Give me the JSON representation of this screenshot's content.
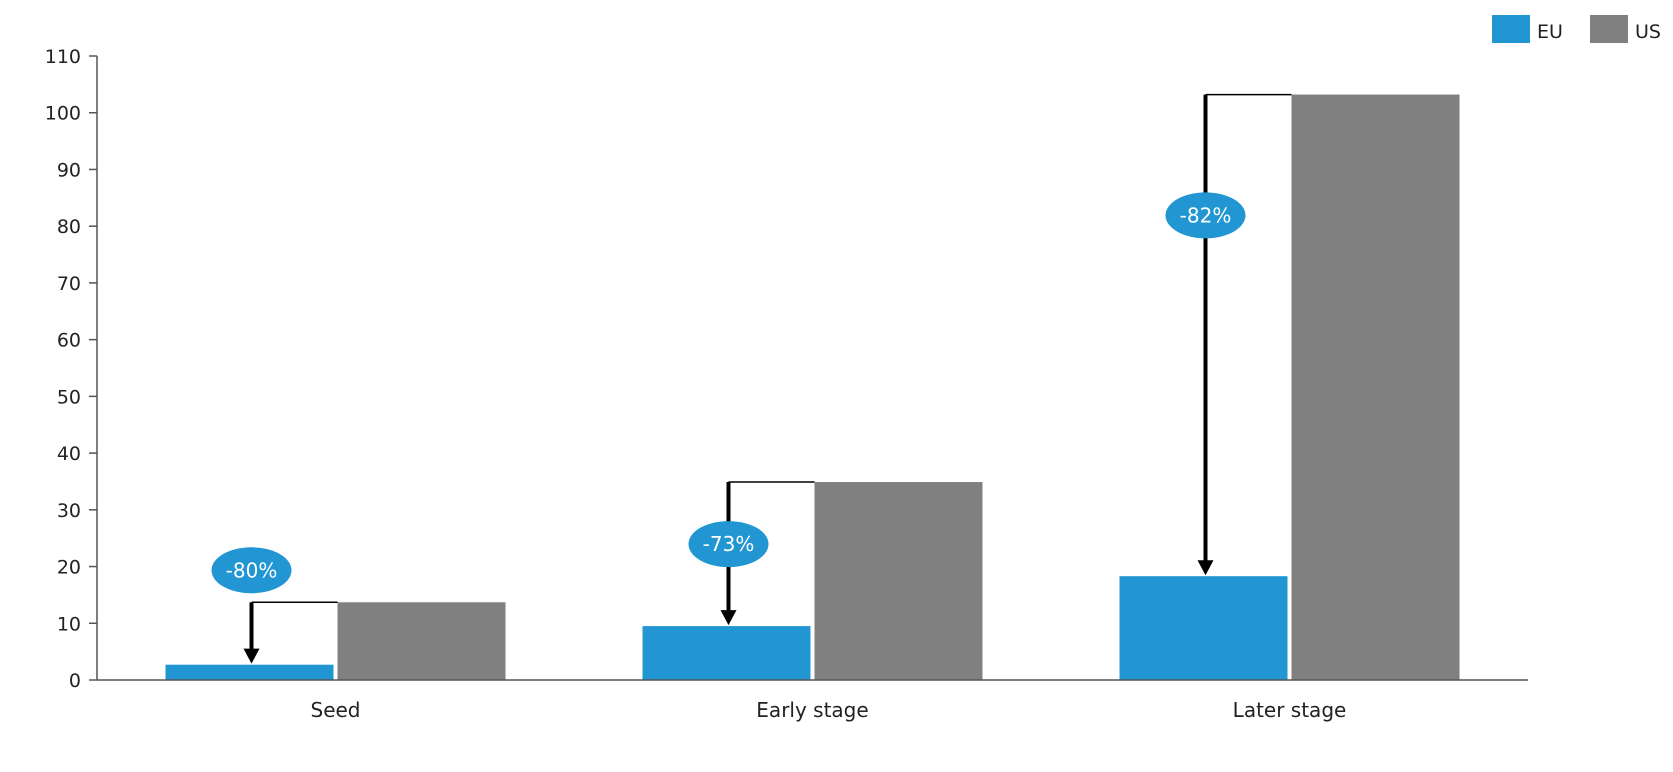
{
  "chart_data": {
    "type": "bar",
    "categories": [
      "Seed",
      "Early stage",
      "Later stage"
    ],
    "series": [
      {
        "name": "EU",
        "color": "#2196d3",
        "values": [
          2.7,
          9.5,
          18.3
        ]
      },
      {
        "name": "US",
        "color": "#808080",
        "values": [
          13.7,
          34.9,
          103.2
        ]
      }
    ],
    "gaps": [
      "-80%",
      "-73%",
      "-82%"
    ],
    "ylim": [
      0,
      110
    ],
    "yticks": [
      "0",
      "10",
      "20",
      "30",
      "40",
      "50",
      "60",
      "70",
      "80",
      "90",
      "100",
      "110"
    ],
    "legend_position": "top-right",
    "grid": false,
    "colors": {
      "eu": "#2196d3",
      "us": "#808080",
      "badge": "#2196d3",
      "axis": "#555555"
    }
  }
}
